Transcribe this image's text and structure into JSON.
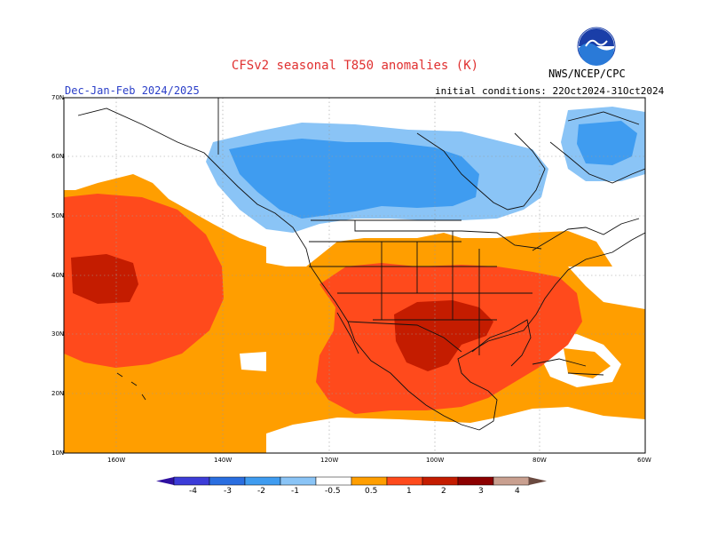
{
  "title": "CFSv2 seasonal T850 anomalies (K)",
  "org": "NWS/NCEP/CPC",
  "season": "Dec-Jan-Feb 2024/2025",
  "init": "initial conditions: 22Oct2024-31Oct2024",
  "logo_text": "NOAA",
  "lat_labels": [
    "70N",
    "60N",
    "50N",
    "40N",
    "30N",
    "20N",
    "10N"
  ],
  "lon_labels": [
    "160W",
    "140W",
    "120W",
    "100W",
    "80W",
    "60W"
  ],
  "colorbar": {
    "labels": [
      "-4",
      "-3",
      "-2",
      "-1",
      "-0.5",
      "0.5",
      "1",
      "2",
      "3",
      "4"
    ],
    "colors": [
      "#2f10a0",
      "#3c3cd8",
      "#2a6ee0",
      "#3f9cf0",
      "#8ac4f6",
      "#ffffff",
      "#ff9e00",
      "#ff4a1c",
      "#c41c00",
      "#8c0000",
      "#c9a090",
      "#6a4a40"
    ]
  }
}
